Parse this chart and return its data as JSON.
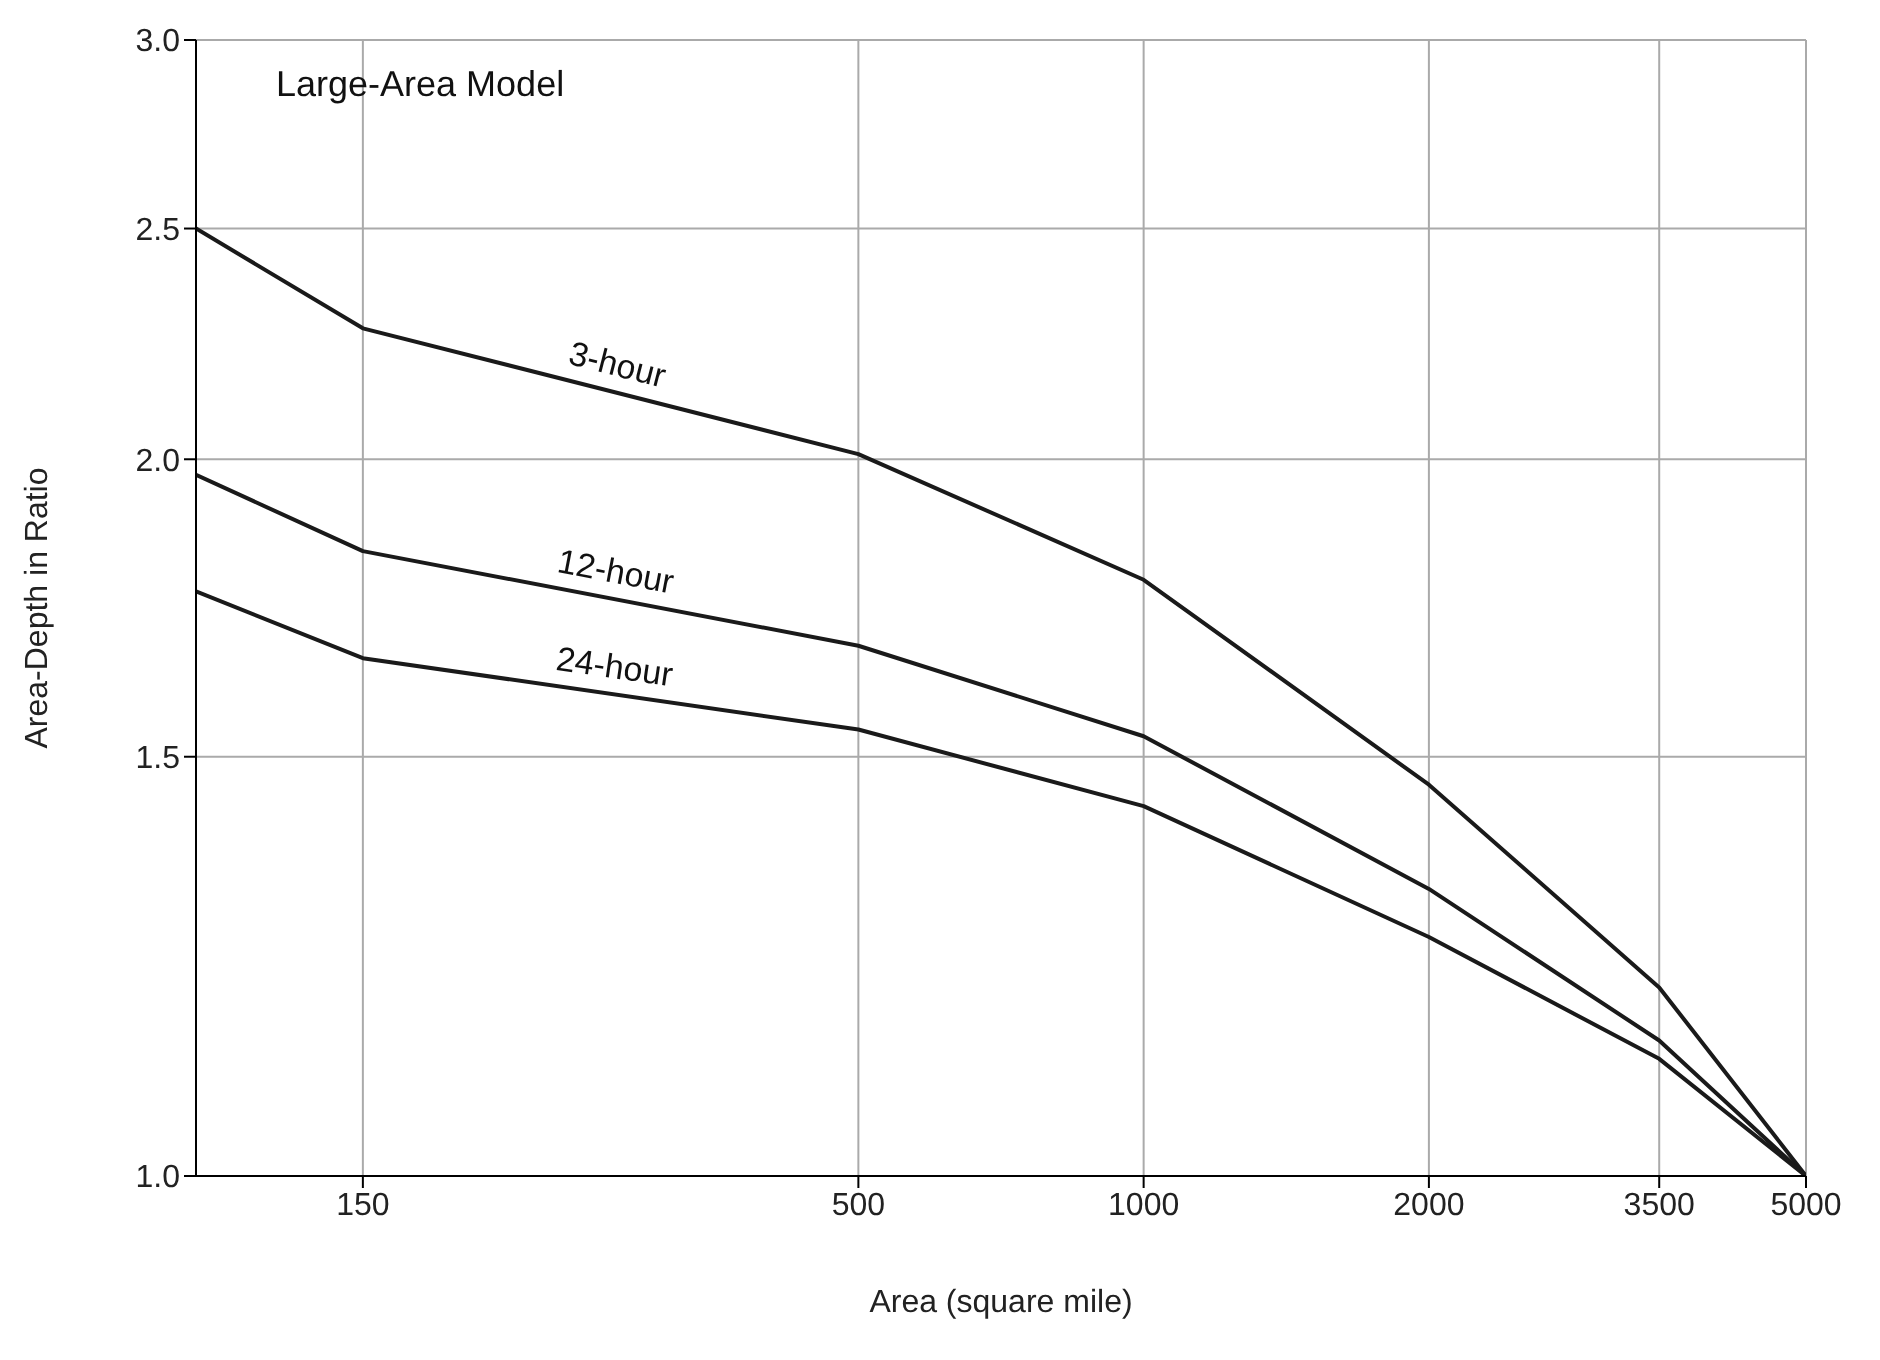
{
  "chart_data": {
    "type": "line",
    "xlabel": "Area (square mile)",
    "ylabel": "Area-Depth in Ratio",
    "x": [
      100,
      150,
      500,
      1000,
      2000,
      3500,
      5000
    ],
    "series": [
      {
        "name": "3-hour",
        "color": "#1a1a1a",
        "values": [
          2.5,
          2.27,
          2.01,
          1.78,
          1.46,
          1.2,
          1.0
        ]
      },
      {
        "name": "12-hour",
        "color": "#1a1a1a",
        "values": [
          1.97,
          1.83,
          1.67,
          1.53,
          1.32,
          1.14,
          1.0
        ]
      },
      {
        "name": "24-hour",
        "color": "#1a1a1a",
        "values": [
          1.76,
          1.65,
          1.54,
          1.43,
          1.26,
          1.12,
          1.0
        ]
      }
    ],
    "xlim": [
      100,
      5000
    ],
    "xticks": [
      150,
      500,
      1000,
      2000,
      3500,
      5000
    ],
    "ylim": [
      1,
      3
    ],
    "yticks": [
      {
        "value": 1,
        "label": "1.0"
      },
      1.5,
      {
        "value": 2,
        "label": "2.0"
      },
      2.5,
      {
        "value": 3,
        "label": "3.0"
      }
    ],
    "log": "xy",
    "grid": true,
    "legend": false,
    "marker": "none",
    "line_style": "solid",
    "annotations": [
      "Large-Area Model"
    ]
  }
}
